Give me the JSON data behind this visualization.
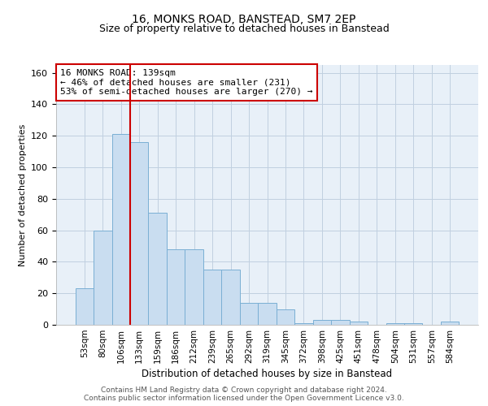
{
  "title": "16, MONKS ROAD, BANSTEAD, SM7 2EP",
  "subtitle": "Size of property relative to detached houses in Banstead",
  "xlabel": "Distribution of detached houses by size in Banstead",
  "ylabel": "Number of detached properties",
  "bar_labels": [
    "53sqm",
    "80sqm",
    "106sqm",
    "133sqm",
    "159sqm",
    "186sqm",
    "212sqm",
    "239sqm",
    "265sqm",
    "292sqm",
    "319sqm",
    "345sqm",
    "372sqm",
    "398sqm",
    "425sqm",
    "451sqm",
    "478sqm",
    "504sqm",
    "531sqm",
    "557sqm",
    "584sqm"
  ],
  "bar_values": [
    23,
    60,
    121,
    116,
    71,
    48,
    48,
    35,
    35,
    14,
    14,
    10,
    1,
    3,
    3,
    2,
    0,
    1,
    1,
    0,
    2
  ],
  "bar_color": "#c9ddf0",
  "bar_edge_color": "#7aafd4",
  "grid_color": "#c0d0e0",
  "background_color": "#e8f0f8",
  "vline_x_index": 3,
  "vline_color": "#cc0000",
  "annotation_line1": "16 MONKS ROAD: 139sqm",
  "annotation_line2": "← 46% of detached houses are smaller (231)",
  "annotation_line3": "53% of semi-detached houses are larger (270) →",
  "ylim": [
    0,
    165
  ],
  "yticks": [
    0,
    20,
    40,
    60,
    80,
    100,
    120,
    140,
    160
  ],
  "title_fontsize": 10,
  "subtitle_fontsize": 9,
  "footer_line1": "Contains HM Land Registry data © Crown copyright and database right 2024.",
  "footer_line2": "Contains public sector information licensed under the Open Government Licence v3.0."
}
